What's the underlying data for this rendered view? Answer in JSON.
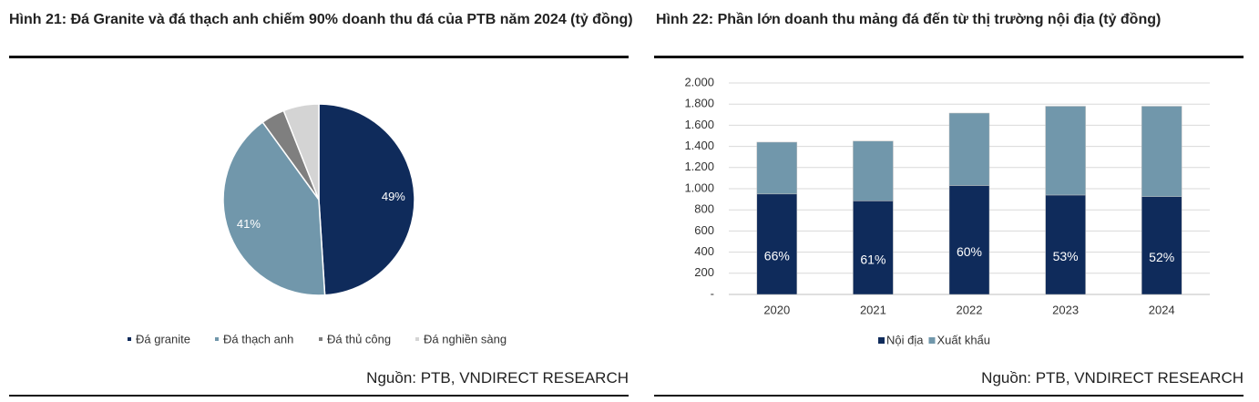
{
  "chart_data": [
    {
      "type": "pie",
      "title": "Hình 21: Đá Granite và đá thạch anh chiếm 90% doanh thu đá của PTB năm 2024 (tỷ đồng)",
      "categories": [
        "Đá granite",
        "Đá thạch anh",
        "Đá thủ công",
        "Đá nghiền sàng"
      ],
      "values": [
        49,
        41,
        4,
        6
      ],
      "value_labels": [
        "49%",
        "41%",
        null,
        null
      ],
      "colors": [
        "#0f2b5b",
        "#7197ab",
        "#7f7f7f",
        "#d4d4d4"
      ],
      "source": "Nguồn: PTB, VNDIRECT RESEARCH"
    },
    {
      "type": "stacked-bar",
      "title": "Hình 22: Phần lớn doanh thu mảng đá đến từ thị trường nội địa (tỷ đồng)",
      "categories": [
        "2020",
        "2021",
        "2022",
        "2023",
        "2024"
      ],
      "series": [
        {
          "name": "Nội địa",
          "color": "#0f2b5b",
          "values": [
            950,
            885,
            1030,
            940,
            925
          ],
          "share_labels": [
            "66%",
            "61%",
            "60%",
            "53%",
            "52%"
          ]
        },
        {
          "name": "Xuất khẩu",
          "color": "#7197ab",
          "values": [
            490,
            565,
            685,
            840,
            855
          ]
        }
      ],
      "ylim": [
        0,
        2000
      ],
      "yticks": [
        {
          "value": 0,
          "label": "-"
        },
        200,
        400,
        600,
        800,
        {
          "value": 1000,
          "label": "1.000"
        },
        {
          "value": 1200,
          "label": "1.200"
        },
        {
          "value": 1400,
          "label": "1.400"
        },
        {
          "value": 1600,
          "label": "1.600"
        },
        {
          "value": 1800,
          "label": "1.800"
        },
        {
          "value": 2000,
          "label": "2.000"
        }
      ],
      "grid": true,
      "source": "Nguồn: PTB, VNDIRECT RESEARCH"
    }
  ]
}
